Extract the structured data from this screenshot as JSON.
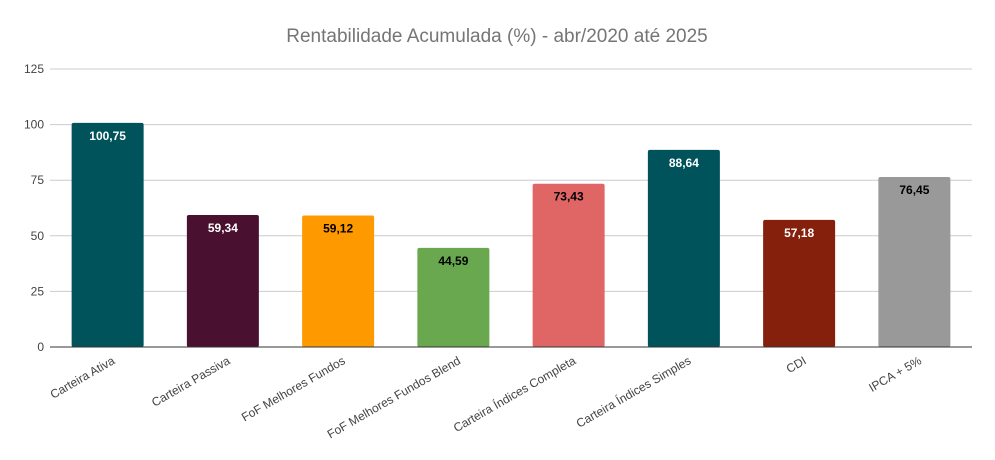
{
  "chart_data": {
    "type": "bar",
    "title": "Rentabilidade Acumulada (%) - abr/2020 até 2025",
    "xlabel": "",
    "ylabel": "",
    "ylim": [
      0,
      125
    ],
    "yticks": [
      0,
      25,
      50,
      75,
      100,
      125
    ],
    "grid": true,
    "legend": "none",
    "categories": [
      "Carteira Ativa",
      "Carteira Passiva",
      "FoF Melhores Fundos",
      "FoF Melhores Fundos Blend",
      "Carteira Índices Completa",
      "Carteira Índices Simples",
      "CDI",
      "IPCA + 5%"
    ],
    "values": [
      100.75,
      59.34,
      59.12,
      44.59,
      73.43,
      88.64,
      57.18,
      76.45
    ],
    "value_labels": [
      "100,75",
      "59,34",
      "59,12",
      "44,59",
      "73,43",
      "88,64",
      "57,18",
      "76,45"
    ],
    "colors": [
      "#00525b",
      "#4a1030",
      "#ff9900",
      "#6aa84f",
      "#e06666",
      "#00525b",
      "#85200c",
      "#999999"
    ],
    "label_colors": [
      "#ffffff",
      "#ffffff",
      "#000000",
      "#000000",
      "#000000",
      "#ffffff",
      "#ffffff",
      "#000000"
    ]
  }
}
